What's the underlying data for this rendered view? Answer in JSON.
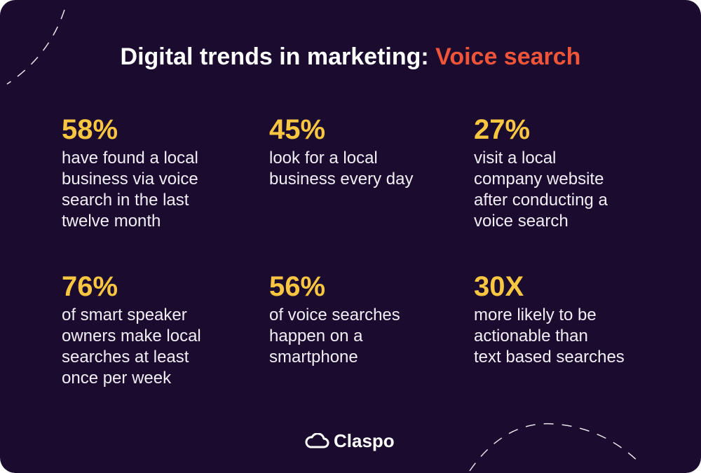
{
  "header": {
    "title": "Digital trends in marketing:",
    "highlight": "Voice search"
  },
  "stats": [
    {
      "value": "58%",
      "lines": [
        "have found a local",
        "business via voice",
        "search in the last",
        "twelve month"
      ]
    },
    {
      "value": "45%",
      "lines": [
        "look for a local",
        "business every day"
      ]
    },
    {
      "value": "27%",
      "lines": [
        "visit a local",
        "company website",
        "after conducting a",
        "voice search"
      ]
    },
    {
      "value": "76%",
      "lines": [
        "of smart speaker",
        "owners make local",
        "searches at least",
        "once per week"
      ]
    },
    {
      "value": "56%",
      "lines": [
        "of voice searches",
        "happen on a",
        "smartphone"
      ]
    },
    {
      "value": "30X",
      "lines": [
        "more likely to be",
        "actionable than",
        "text based searches"
      ]
    }
  ],
  "footer": {
    "logo": "Claspo"
  }
}
